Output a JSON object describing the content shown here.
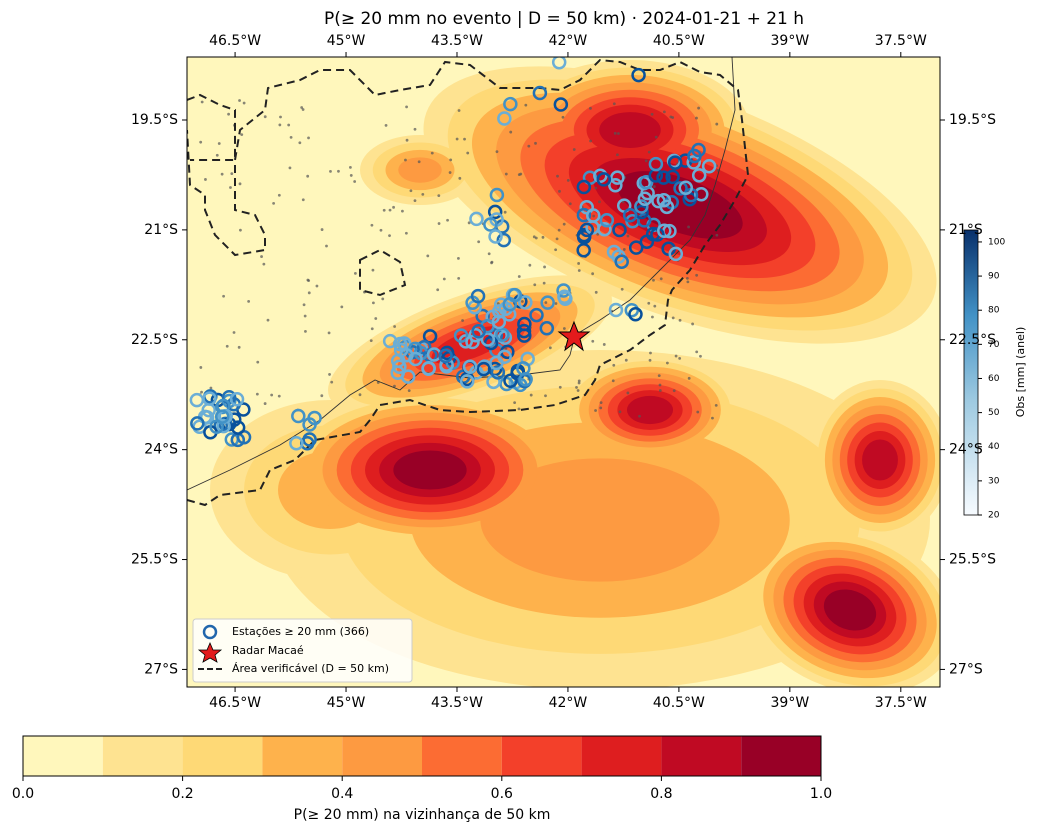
{
  "title": "P(≥ 20 mm no evento | D = 50 km)  ·  2024-01-21 + 21 h",
  "map": {
    "xlim": [
      -47.15,
      -36.97
    ],
    "ylim": [
      -27.24,
      -18.64
    ],
    "xticks": [
      {
        "value": -46.5,
        "label": "46.5°W"
      },
      {
        "value": -45,
        "label": "45°W"
      },
      {
        "value": -43.5,
        "label": "43.5°W"
      },
      {
        "value": -42,
        "label": "42°W"
      },
      {
        "value": -40.5,
        "label": "40.5°W"
      },
      {
        "value": -39,
        "label": "39°W"
      },
      {
        "value": -37.5,
        "label": "37.5°W"
      }
    ],
    "yticks": [
      {
        "value": -19.5,
        "label": "19.5°S"
      },
      {
        "value": -21,
        "label": "21°S"
      },
      {
        "value": -22.5,
        "label": "22.5°S"
      },
      {
        "value": -24,
        "label": "24°S"
      },
      {
        "value": -25.5,
        "label": "25.5°S"
      },
      {
        "value": -27,
        "label": "27°S"
      }
    ]
  },
  "legend": {
    "entries": [
      "Estações ≥ 20 mm (366)",
      "Radar Macaé",
      "Área verificável (D = 50 km)"
    ]
  },
  "colorbar": {
    "label": "P(≥ 20 mm) na vizinhança de 50 km",
    "levels": [
      0,
      0.1,
      0.2,
      0.3,
      0.4,
      0.5,
      0.6,
      0.7,
      0.8,
      0.9,
      1.0
    ],
    "colors": [
      "#fff7bc",
      "#fee391",
      "#fed976",
      "#feb24c",
      "#fd9a41",
      "#fc6c33",
      "#f3402a",
      "#de1e1f",
      "#c00a23",
      "#980026"
    ],
    "xlim": [
      0,
      1
    ],
    "ticks": [
      {
        "value": 0,
        "label": "0.0"
      },
      0.2,
      0.4,
      0.6,
      0.8,
      {
        "value": 1,
        "label": "1.0"
      }
    ]
  },
  "obs_colorbar": {
    "label": "Obs [mm] (anel)",
    "ylim": [
      20,
      103.5
    ],
    "ticks": [
      20,
      30,
      40,
      50,
      60,
      70,
      80,
      90,
      100
    ]
  }
}
